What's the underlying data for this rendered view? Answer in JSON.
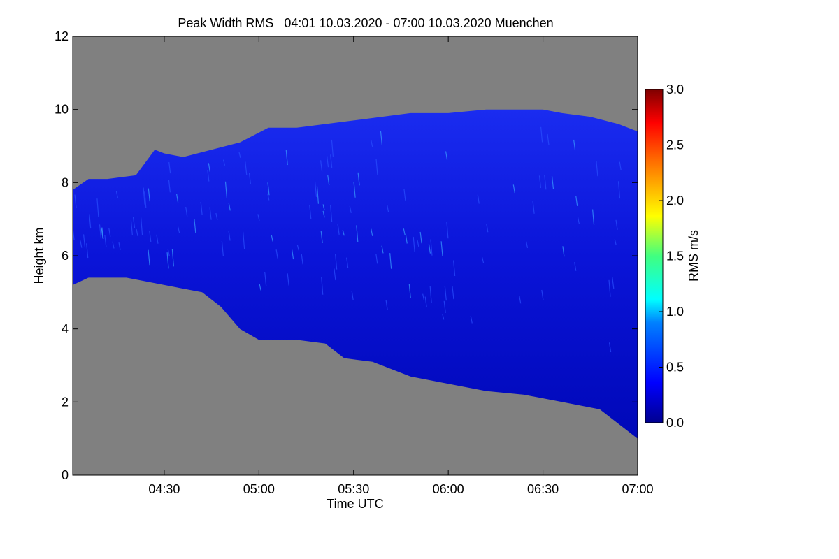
{
  "chart_data": {
    "type": "heatmap",
    "title": "Peak Width RMS   04:01 10.03.2020 - 07:00 10.03.2020 Muenchen",
    "xlabel": "Time UTC",
    "ylabel": "Height km",
    "x_range_hours": [
      4.0167,
      7.0
    ],
    "y_range_km": [
      0,
      12
    ],
    "x_ticks": [
      {
        "label": "04:30",
        "value": 4.5
      },
      {
        "label": "05:00",
        "value": 5.0
      },
      {
        "label": "05:30",
        "value": 5.5
      },
      {
        "label": "06:00",
        "value": 6.0
      },
      {
        "label": "06:30",
        "value": 6.5
      },
      {
        "label": "07:00",
        "value": 7.0
      }
    ],
    "y_ticks": [
      {
        "label": "0",
        "value": 0
      },
      {
        "label": "2",
        "value": 2
      },
      {
        "label": "4",
        "value": 4
      },
      {
        "label": "6",
        "value": 6
      },
      {
        "label": "8",
        "value": 8
      },
      {
        "label": "10",
        "value": 10
      },
      {
        "label": "12",
        "value": 12
      }
    ],
    "colorbar": {
      "label": "RMS m/s",
      "range": [
        0.0,
        3.0
      ],
      "ticks": [
        {
          "label": "0.0",
          "value": 0.0
        },
        {
          "label": "0.5",
          "value": 0.5
        },
        {
          "label": "1.0",
          "value": 1.0
        },
        {
          "label": "1.5",
          "value": 1.5
        },
        {
          "label": "2.0",
          "value": 2.0
        },
        {
          "label": "2.5",
          "value": 2.5
        },
        {
          "label": "3.0",
          "value": 3.0
        }
      ]
    },
    "cloud_layer": {
      "typical_rms": 0.35,
      "max_rms": 0.9,
      "top_km": [
        [
          4.0167,
          7.8
        ],
        [
          4.1,
          8.1
        ],
        [
          4.2,
          8.1
        ],
        [
          4.35,
          8.2
        ],
        [
          4.45,
          8.9
        ],
        [
          4.5,
          8.8
        ],
        [
          4.6,
          8.7
        ],
        [
          4.75,
          8.9
        ],
        [
          4.9,
          9.1
        ],
        [
          5.05,
          9.5
        ],
        [
          5.2,
          9.5
        ],
        [
          5.5,
          9.7
        ],
        [
          5.8,
          9.9
        ],
        [
          6.0,
          9.9
        ],
        [
          6.2,
          10.0
        ],
        [
          6.4,
          10.0
        ],
        [
          6.5,
          10.0
        ],
        [
          6.6,
          9.9
        ],
        [
          6.75,
          9.8
        ],
        [
          6.9,
          9.6
        ],
        [
          7.0,
          9.4
        ]
      ],
      "base_km": [
        [
          4.0167,
          5.2
        ],
        [
          4.1,
          5.4
        ],
        [
          4.3,
          5.4
        ],
        [
          4.5,
          5.2
        ],
        [
          4.7,
          5.0
        ],
        [
          4.8,
          4.6
        ],
        [
          4.9,
          4.0
        ],
        [
          5.0,
          3.7
        ],
        [
          5.2,
          3.7
        ],
        [
          5.35,
          3.6
        ],
        [
          5.45,
          3.2
        ],
        [
          5.6,
          3.1
        ],
        [
          5.8,
          2.7
        ],
        [
          6.0,
          2.5
        ],
        [
          6.2,
          2.3
        ],
        [
          6.4,
          2.2
        ],
        [
          6.6,
          2.0
        ],
        [
          6.8,
          1.8
        ],
        [
          6.9,
          1.4
        ],
        [
          7.0,
          1.0
        ]
      ]
    }
  }
}
